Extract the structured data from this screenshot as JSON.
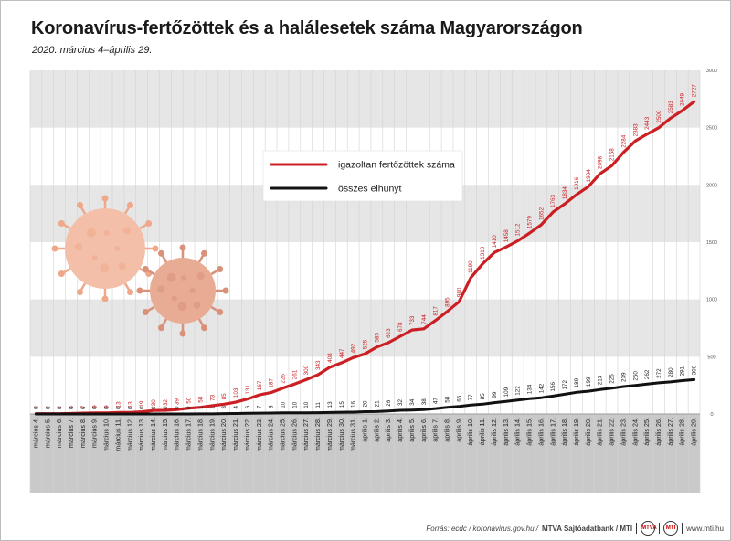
{
  "title": "Koronavírus-fertőzöttek és a halálesetek száma Magyarországon",
  "subtitle": "2020. március 4–április 29.",
  "footer": {
    "source": "Forrás: ecdc / koronavirus.gov.hu /",
    "agency": "MTVA Sajtóadatbank / MTI",
    "site": "www.mti.hu"
  },
  "colors": {
    "infected": "#cc1f24",
    "deaths": "#111111",
    "band": "#e6e6e6",
    "axis_band": "#c9c9c9"
  },
  "chart_data": {
    "type": "line",
    "categories": [
      "március 4.",
      "március 5.",
      "március 6.",
      "március 7.",
      "március 8.",
      "március 9.",
      "március 10.",
      "március 11.",
      "március 12.",
      "március 13.",
      "március 14.",
      "március 15.",
      "március 16.",
      "március 17.",
      "március 18.",
      "március 19.",
      "március 20.",
      "március 21.",
      "március 22.",
      "március 23.",
      "március 24.",
      "március 25.",
      "március 26.",
      "március 27.",
      "március 28.",
      "március 29.",
      "március 30.",
      "március 31.",
      "április 1.",
      "április 2.",
      "április 3.",
      "április 4.",
      "április 5.",
      "április 6.",
      "április 7.",
      "április 8.",
      "április 9.",
      "április 10.",
      "április 11.",
      "április 12.",
      "április 13.",
      "április 14.",
      "április 15.",
      "április 16.",
      "április 17.",
      "április 18.",
      "április 19.",
      "április 20.",
      "április 21.",
      "április 22.",
      "április 23.",
      "április 24.",
      "április 25.",
      "április 26.",
      "április 27.",
      "április 28.",
      "április 29."
    ],
    "ylim": [
      0,
      3000
    ],
    "yticks": [
      0,
      500,
      1000,
      1500,
      2000,
      2500,
      3000
    ],
    "series": [
      {
        "name": "igazoltan fertőzöttek száma",
        "values": [
          2,
          2,
          2,
          4,
          7,
          9,
          9,
          13,
          13,
          19,
          30,
          32,
          39,
          50,
          58,
          73,
          85,
          103,
          131,
          167,
          187,
          226,
          261,
          300,
          343,
          408,
          447,
          492,
          525,
          585,
          623,
          678,
          733,
          744,
          817,
          895,
          980,
          1190,
          1310,
          1410,
          1458,
          1512,
          1579,
          1652,
          1763,
          1834,
          1916,
          1984,
          2098,
          2168,
          2284,
          2383,
          2443,
          2500,
          2583,
          2649,
          2727
        ]
      },
      {
        "name": "összes elhunyt",
        "values": [
          0,
          0,
          0,
          0,
          0,
          0,
          0,
          0,
          0,
          0,
          0,
          0,
          0,
          0,
          1,
          1,
          3,
          4,
          6,
          7,
          8,
          10,
          10,
          10,
          11,
          13,
          15,
          16,
          20,
          21,
          26,
          32,
          34,
          38,
          47,
          58,
          66,
          77,
          85,
          99,
          109,
          122,
          134,
          142,
          156,
          172,
          189,
          199,
          213,
          225,
          239,
          250,
          262,
          272,
          280,
          291,
          300
        ]
      }
    ],
    "legend": "inside-top-center"
  }
}
